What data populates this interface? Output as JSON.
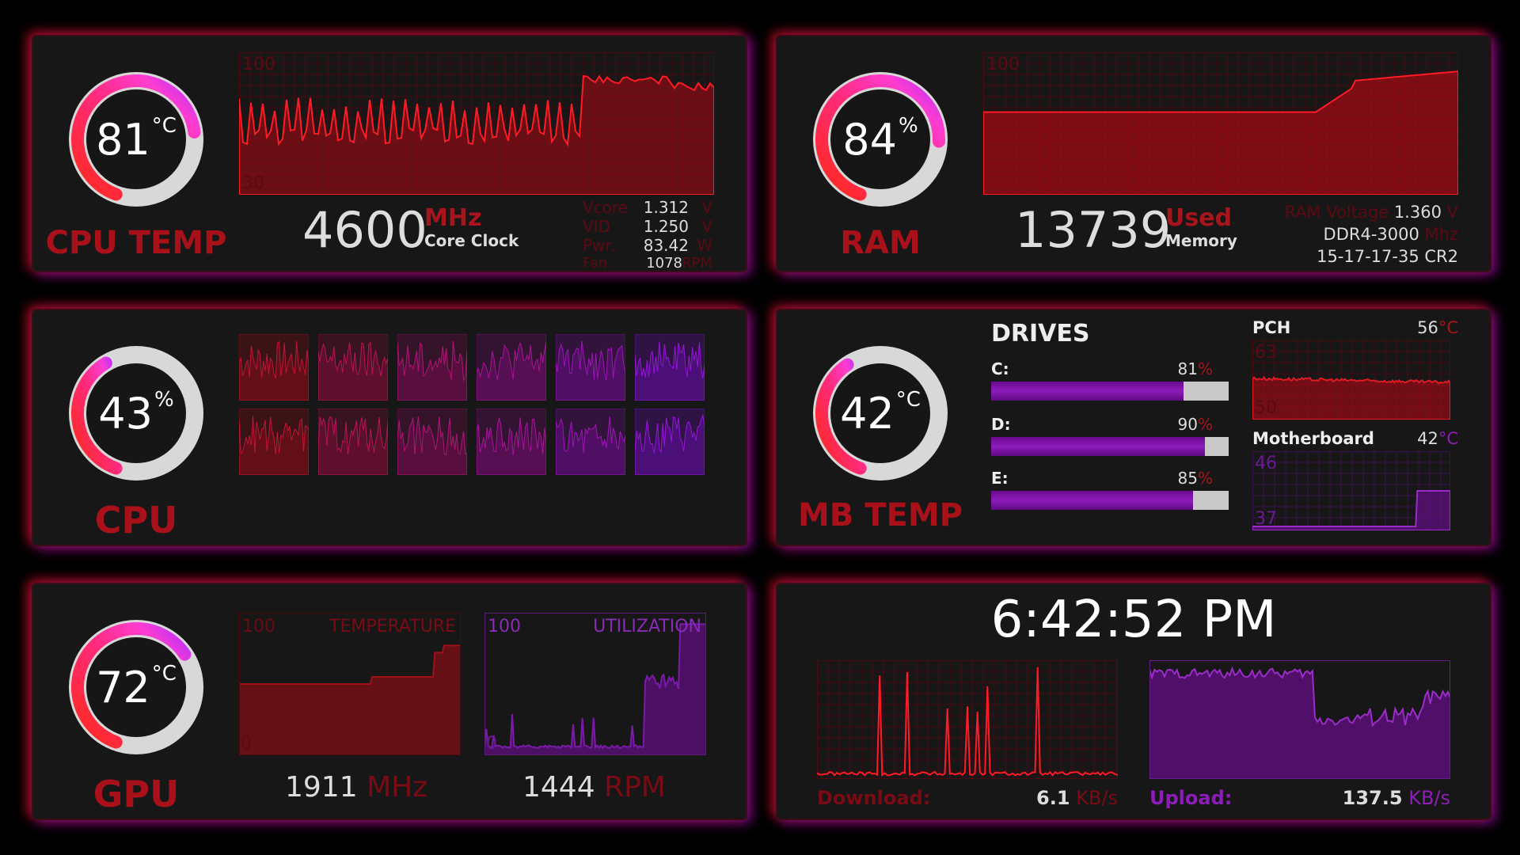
{
  "cpu_temp": {
    "gauge_value": "81",
    "gauge_unit": "°C",
    "gauge_fraction": 0.81,
    "title": "CPU TEMP",
    "chart_max": "100",
    "chart_min": "30",
    "clock_value": "4600",
    "clock_unit": "MHz",
    "clock_label": "Core Clock",
    "stats": [
      {
        "label": "Vcore",
        "value": "1.312",
        "unit": "V"
      },
      {
        "label": "VID",
        "value": "1.250",
        "unit": "V"
      },
      {
        "label": "Pwr.",
        "value": "83.42",
        "unit": "W"
      },
      {
        "label": "Fan",
        "value": "1078",
        "unit": "RPM"
      }
    ]
  },
  "ram": {
    "gauge_value": "84",
    "gauge_unit": "%",
    "gauge_fraction": 0.84,
    "title": "RAM",
    "chart_max": "100",
    "used_value": "13739",
    "used_label": "Used",
    "used_sub": "Memory",
    "voltage_label": "RAM Voltage",
    "voltage_value": "1.360",
    "voltage_unit": "V",
    "speed_value": "DDR4-3000",
    "speed_unit": "Mhz",
    "timings": "15-17-17-35 CR2"
  },
  "cpu": {
    "gauge_value": "43",
    "gauge_unit": "%",
    "gauge_fraction": 0.43,
    "title": "CPU",
    "core_count": 12
  },
  "mb_temp": {
    "gauge_value": "42",
    "gauge_unit": "°C",
    "gauge_fraction": 0.42,
    "title": "MB TEMP",
    "drives_title": "DRIVES",
    "drives": [
      {
        "label": "C:",
        "pct": "81",
        "unit": "%",
        "fraction": 0.81
      },
      {
        "label": "D:",
        "pct": "90",
        "unit": "%",
        "fraction": 0.9
      },
      {
        "label": "E:",
        "pct": "85",
        "unit": "%",
        "fraction": 0.85
      }
    ],
    "pch": {
      "title": "PCH",
      "value": "56",
      "unit": "°C",
      "chart_max": "63",
      "chart_min": "50"
    },
    "motherboard": {
      "title": "Motherboard",
      "value": "42",
      "unit": "°C",
      "chart_max": "46",
      "chart_min": "37"
    }
  },
  "gpu": {
    "gauge_value": "72",
    "gauge_unit": "°C",
    "gauge_fraction": 0.72,
    "title": "GPU",
    "temp_chart": {
      "max": "100",
      "min": "0",
      "title": "TEMPERATURE"
    },
    "util_chart": {
      "max": "100",
      "min": "0",
      "title": "UTILIZATION"
    },
    "clock_value": "1911",
    "clock_unit": "MHz",
    "fan_value": "1444",
    "fan_unit": "RPM"
  },
  "network": {
    "clock": "6:42:52 PM",
    "download_label": "Download:",
    "download_value": "6.1",
    "download_unit": "KB/s",
    "upload_label": "Upload:",
    "upload_value": "137.5",
    "upload_unit": "KB/s"
  },
  "colors": {
    "red": "#c41420",
    "purple": "#8d1cba",
    "gauge_track": "#d8d8d8"
  }
}
